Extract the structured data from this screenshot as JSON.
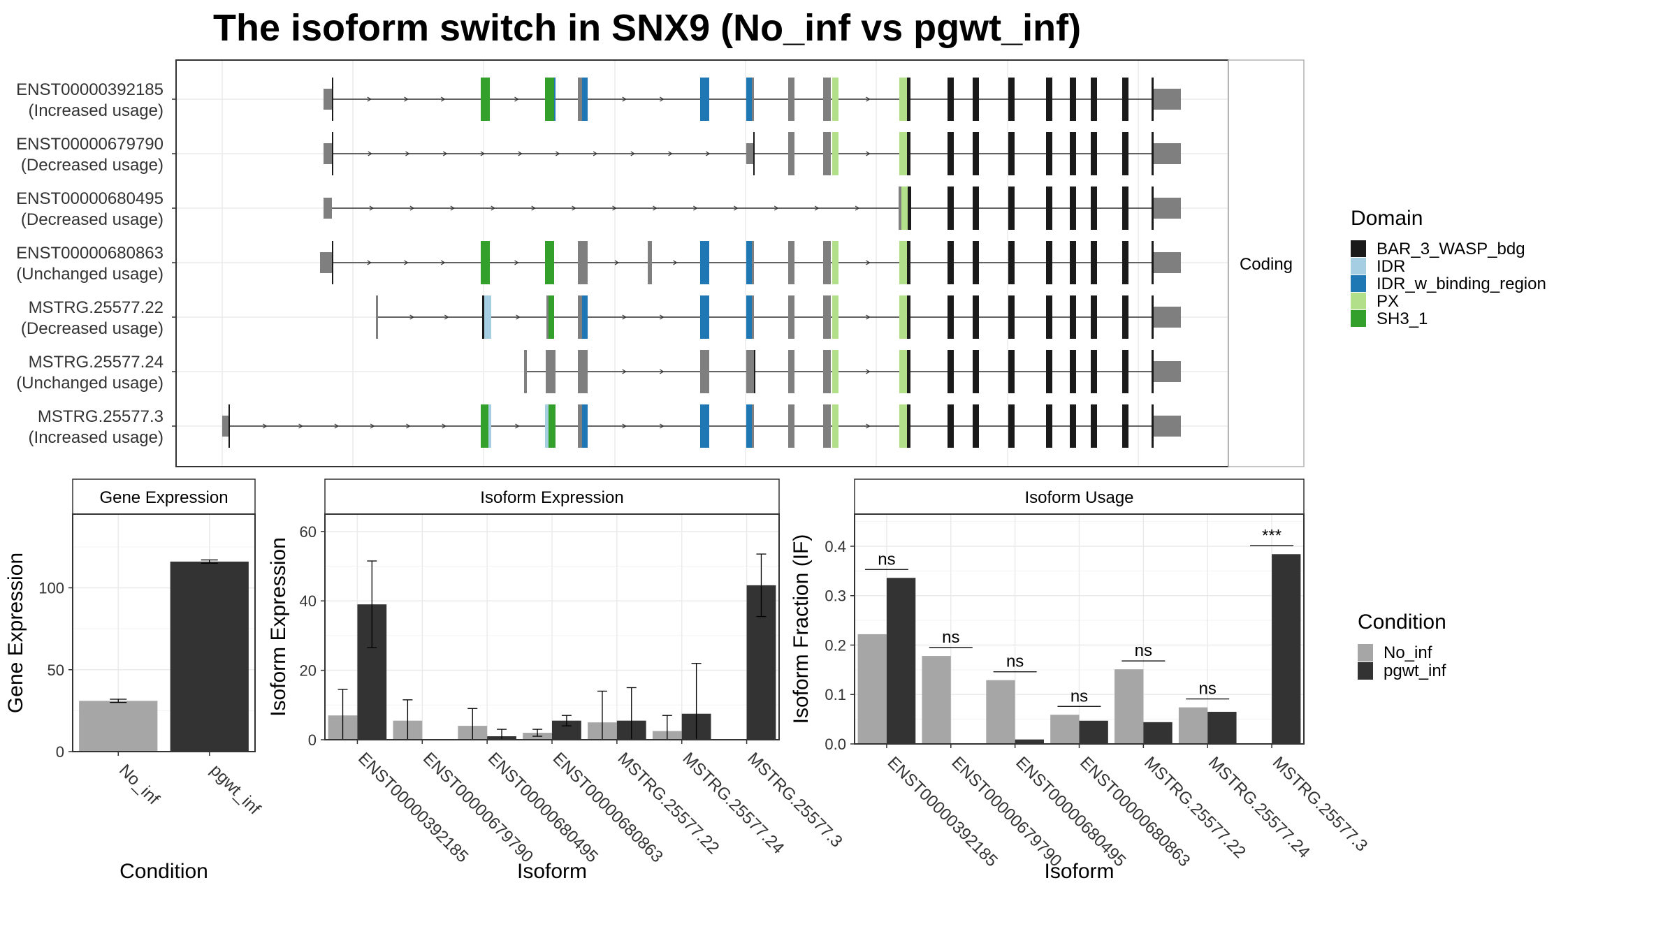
{
  "title": "The isoform switch in SNX9 (No_inf vs pgwt_inf)",
  "isoform_structure": {
    "facet_label": "Coding",
    "transcripts": [
      {
        "name": "ENST00000392185",
        "status": "(Increased usage)"
      },
      {
        "name": "ENST00000679790",
        "status": "(Decreased usage)"
      },
      {
        "name": "ENST00000680495",
        "status": "(Decreased usage)"
      },
      {
        "name": "ENST00000680863",
        "status": "(Unchanged usage)"
      },
      {
        "name": "MSTRG.25577.22",
        "status": "(Decreased usage)"
      },
      {
        "name": "MSTRG.25577.24",
        "status": "(Unchanged usage)"
      },
      {
        "name": "MSTRG.25577.3",
        "status": "(Increased usage)"
      }
    ]
  },
  "domain_legend": {
    "title": "Domain",
    "items": [
      {
        "label": "BAR_3_WASP_bdg",
        "color": "#1a1a1a"
      },
      {
        "label": "IDR",
        "color": "#a6cee3"
      },
      {
        "label": "IDR_w_binding_region",
        "color": "#1f78b4"
      },
      {
        "label": "PX",
        "color": "#b2df8a"
      },
      {
        "label": "SH3_1",
        "color": "#33a02c"
      }
    ]
  },
  "condition_legend": {
    "title": "Condition",
    "items": [
      {
        "label": "No_inf",
        "color": "#a6a6a6"
      },
      {
        "label": "pgwt_inf",
        "color": "#333333"
      }
    ]
  },
  "chart_data": [
    {
      "type": "bar",
      "panel_title": "Gene Expression",
      "xlabel": "Condition",
      "ylabel": "Gene Expression",
      "ylim": [
        0,
        145
      ],
      "yticks": [
        0,
        50,
        100
      ],
      "categories": [
        "No_inf",
        "pgwt_inf"
      ],
      "values": [
        31,
        116
      ],
      "error_low": [
        30,
        115
      ],
      "error_high": [
        32,
        117
      ],
      "colors": [
        "#a6a6a6",
        "#333333"
      ],
      "grid": true
    },
    {
      "type": "bar",
      "panel_title": "Isoform Expression",
      "xlabel": "Isoform",
      "ylabel": "Isoform Expression",
      "ylim": [
        0,
        65
      ],
      "yticks": [
        0,
        20,
        40,
        60
      ],
      "categories": [
        "ENST00000392185",
        "ENST00000679790",
        "ENST00000680495",
        "ENST00000680863",
        "MSTRG.25577.22",
        "MSTRG.25577.24",
        "MSTRG.25577.3"
      ],
      "series": [
        {
          "name": "No_inf",
          "values": [
            7,
            5.5,
            4,
            2,
            5,
            2.5,
            0
          ],
          "error_low": [
            0,
            0,
            0,
            1,
            0,
            0,
            0
          ],
          "error_high": [
            14.5,
            11.5,
            9,
            3,
            14,
            7,
            0
          ]
        },
        {
          "name": "pgwt_inf",
          "values": [
            39,
            0,
            1,
            5.5,
            5.5,
            7.5,
            44.5
          ],
          "error_low": [
            26.5,
            0,
            0,
            4,
            0,
            0,
            35.5
          ],
          "error_high": [
            51.5,
            0,
            3,
            7,
            15,
            22,
            53.5
          ]
        }
      ],
      "grid": true
    },
    {
      "type": "bar",
      "panel_title": "Isoform Usage",
      "xlabel": "Isoform",
      "ylabel": "Isoform Fraction (IF)",
      "ylim": [
        0,
        0.465
      ],
      "yticks": [
        0.0,
        0.1,
        0.2,
        0.3,
        0.4
      ],
      "ytick_labels": [
        "0.0",
        "0.1",
        "0.2",
        "0.3",
        "0.4"
      ],
      "categories": [
        "ENST00000392185",
        "ENST00000679790",
        "ENST00000680495",
        "ENST00000680863",
        "MSTRG.25577.22",
        "MSTRG.25577.24",
        "MSTRG.25577.3"
      ],
      "series": [
        {
          "name": "No_inf",
          "values": [
            0.222,
            0.178,
            0.129,
            0.059,
            0.151,
            0.074,
            0.0
          ]
        },
        {
          "name": "pgwt_inf",
          "values": [
            0.336,
            0.0,
            0.009,
            0.047,
            0.044,
            0.065,
            0.384
          ]
        }
      ],
      "significance": [
        "ns",
        "ns",
        "ns",
        "ns",
        "ns",
        "ns",
        "***"
      ],
      "grid": true
    }
  ]
}
